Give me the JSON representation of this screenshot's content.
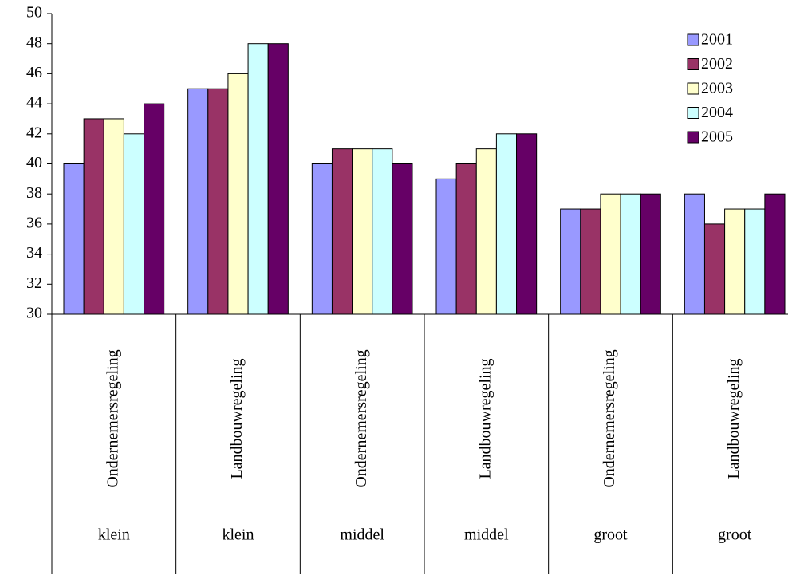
{
  "chart_data": {
    "type": "bar",
    "categories": [
      "Ondernemersregeling",
      "Landbouwregeling",
      "Ondernemersregeling",
      "Landbouwregeling",
      "Ondernemersregeling",
      "Landbouwregeling"
    ],
    "groups": [
      "klein",
      "klein",
      "middel",
      "middel",
      "groot",
      "groot"
    ],
    "series": [
      {
        "name": "2001",
        "color": "#9999ff",
        "values": [
          40,
          45,
          40,
          39,
          37,
          38
        ]
      },
      {
        "name": "2002",
        "color": "#993366",
        "values": [
          43,
          45,
          41,
          40,
          37,
          36
        ]
      },
      {
        "name": "2003",
        "color": "#ffffcc",
        "values": [
          43,
          46,
          41,
          41,
          38,
          37
        ]
      },
      {
        "name": "2004",
        "color": "#ccffff",
        "values": [
          42,
          48,
          41,
          42,
          38,
          37
        ]
      },
      {
        "name": "2005",
        "color": "#660066",
        "values": [
          44,
          48,
          40,
          42,
          38,
          38
        ]
      }
    ],
    "ylim": [
      30,
      50
    ],
    "yticks": [
      30,
      32,
      34,
      36,
      38,
      40,
      42,
      44,
      46,
      48,
      50
    ],
    "grid": false,
    "legend": "top-right"
  }
}
